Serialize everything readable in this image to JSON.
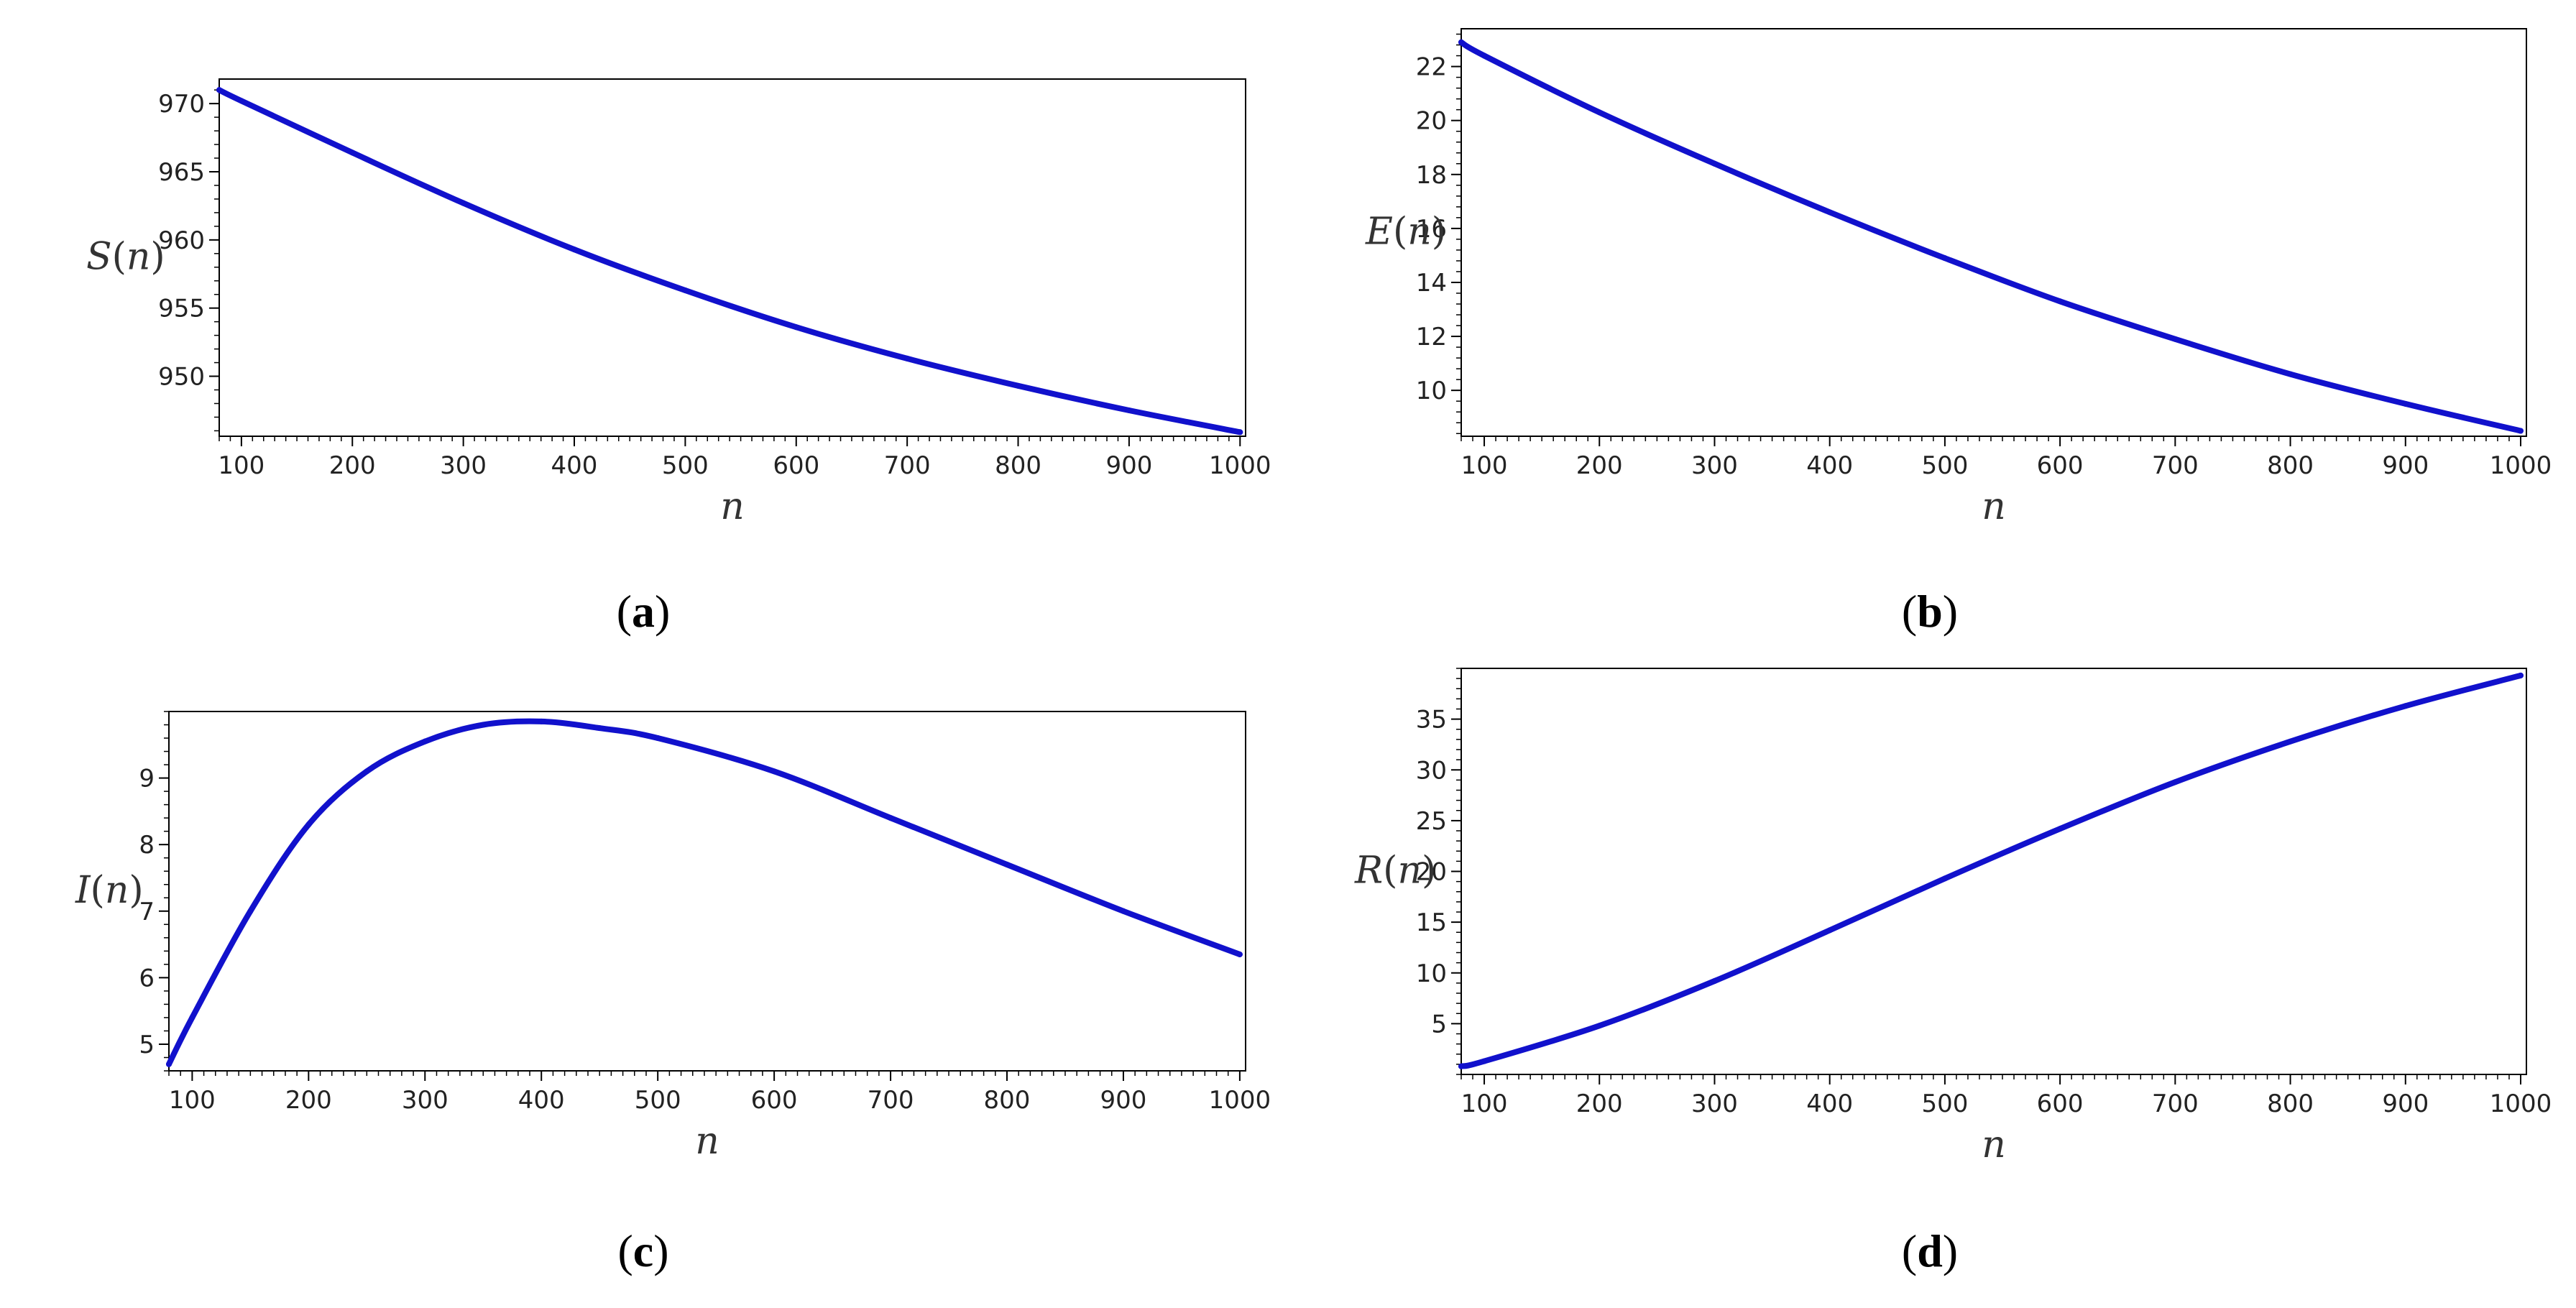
{
  "colors": {
    "curve": "#1111cc",
    "axis": "#000000",
    "background": "#ffffff"
  },
  "chart_data": [
    {
      "panel": "a",
      "caption": "(a)",
      "type": "line",
      "xlabel": "n",
      "ylabel": "S(n)",
      "xlim": [
        80,
        1005
      ],
      "ylim": [
        945.6,
        971.8
      ],
      "xticks": [
        "100",
        "200",
        "300",
        "400",
        "500",
        "600",
        "700",
        "800",
        "900",
        "1000"
      ],
      "yticks": [
        "950",
        "955",
        "960",
        "965",
        "970"
      ],
      "series": [
        {
          "x": [
            80,
            100,
            200,
            300,
            400,
            500,
            600,
            700,
            800,
            900,
            1000
          ],
          "y": [
            971.0,
            970.2,
            966.4,
            962.7,
            959.3,
            956.3,
            953.6,
            951.3,
            949.3,
            947.5,
            945.9
          ]
        }
      ]
    },
    {
      "panel": "b",
      "caption": "(b)",
      "type": "line",
      "xlabel": "n",
      "ylabel": "E(n)",
      "xlim": [
        80,
        1005
      ],
      "ylim": [
        8.3,
        23.4
      ],
      "xticks": [
        "100",
        "200",
        "300",
        "400",
        "500",
        "600",
        "700",
        "800",
        "900",
        "1000"
      ],
      "yticks": [
        "10",
        "12",
        "14",
        "16",
        "18",
        "20",
        "22"
      ],
      "series": [
        {
          "x": [
            80,
            100,
            200,
            300,
            400,
            500,
            600,
            700,
            800,
            900,
            1000
          ],
          "y": [
            22.9,
            22.4,
            20.3,
            18.4,
            16.6,
            14.9,
            13.3,
            11.9,
            10.6,
            9.5,
            8.5
          ]
        }
      ]
    },
    {
      "panel": "c",
      "caption": "(c)",
      "type": "line",
      "xlabel": "n",
      "ylabel": "I(n)",
      "xlim": [
        80,
        1005
      ],
      "ylim": [
        4.6,
        10.0
      ],
      "xticks": [
        "100",
        "200",
        "300",
        "400",
        "500",
        "600",
        "700",
        "800",
        "900",
        "1000"
      ],
      "yticks": [
        "5",
        "6",
        "7",
        "8",
        "9"
      ],
      "series": [
        {
          "x": [
            80,
            100,
            150,
            200,
            250,
            300,
            350,
            400,
            450,
            500,
            600,
            700,
            800,
            900,
            1000
          ],
          "y": [
            4.7,
            5.4,
            7.0,
            8.3,
            9.1,
            9.55,
            9.8,
            9.85,
            9.75,
            9.6,
            9.1,
            8.4,
            7.7,
            7.0,
            6.35
          ]
        }
      ]
    },
    {
      "panel": "d",
      "caption": "(d)",
      "type": "line",
      "xlabel": "n",
      "ylabel": "R(n)",
      "xlim": [
        80,
        1005
      ],
      "ylim": [
        0,
        40
      ],
      "xticks": [
        "100",
        "200",
        "300",
        "400",
        "500",
        "600",
        "700",
        "800",
        "900",
        "1000"
      ],
      "yticks": [
        "5",
        "10",
        "15",
        "20",
        "25",
        "30",
        "35"
      ],
      "series": [
        {
          "x": [
            80,
            100,
            200,
            300,
            400,
            500,
            600,
            700,
            800,
            900,
            1000
          ],
          "y": [
            0.8,
            1.3,
            4.8,
            9.2,
            14.2,
            19.3,
            24.2,
            28.8,
            32.8,
            36.3,
            39.3
          ]
        }
      ]
    }
  ]
}
